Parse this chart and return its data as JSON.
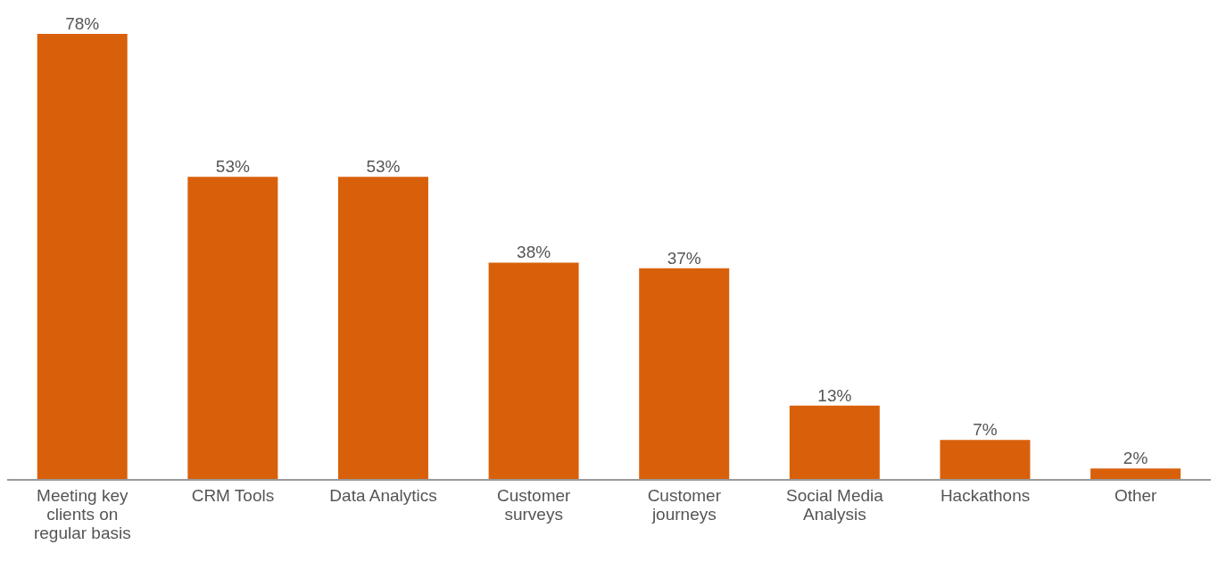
{
  "chart_data": {
    "type": "bar",
    "categories": [
      "Meeting key clients on regular basis",
      "CRM Tools",
      "Data Analytics",
      "Customer surveys",
      "Customer journeys",
      "Social Media Analysis",
      "Hackathons",
      "Other"
    ],
    "values": [
      78,
      53,
      53,
      38,
      37,
      13,
      7,
      2
    ],
    "value_labels": [
      "78%",
      "53%",
      "53%",
      "38%",
      "37%",
      "13%",
      "7%",
      "2%"
    ],
    "color": "#d9600b",
    "grid": false,
    "legend": false
  }
}
